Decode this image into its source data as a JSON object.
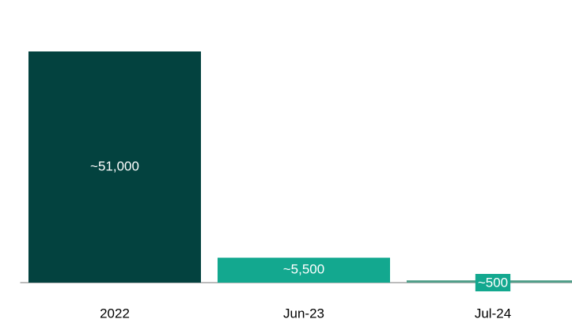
{
  "chart_data": {
    "type": "bar",
    "categories": [
      "2022",
      "Jun-23",
      "Jul-24"
    ],
    "values": [
      51000,
      5500,
      500
    ],
    "value_labels": [
      "~51,000",
      "~5,500",
      "~500"
    ],
    "colors": [
      "#03423f",
      "#13a88f",
      "#4f9e88"
    ]
  }
}
